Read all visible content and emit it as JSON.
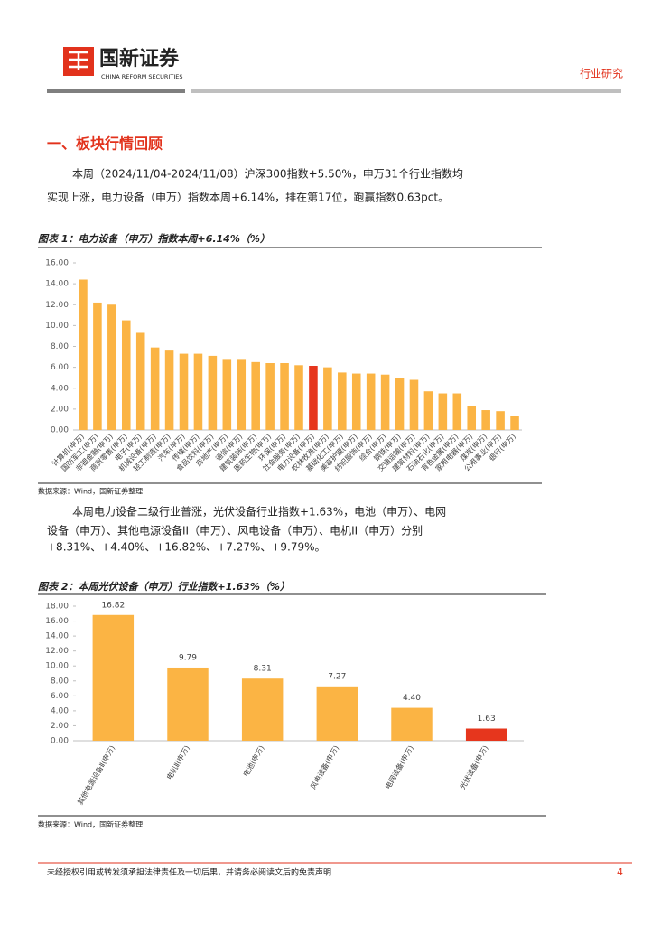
{
  "header": {
    "brand": "国新证券",
    "brand_en": "CHINA REFORM SECURITIES",
    "tag": "行业研究"
  },
  "section_title": "一、板块行情回顾",
  "paragraph1": [
    "本周（2024/11/04-2024/11/08）沪深300指数+5.50%，申万31个行业指数均",
    "实现上涨，电力设备（申万）指数本周+6.14%，排在第17位，跑赢指数0.63pct。"
  ],
  "paragraph2": [
    "本周电力设备二级行业普涨，光伏设备行业指数+1.63%，电池（申万）、电网",
    "设备（申万）、其他电源设备II（申万）、风电设备（申万）、电机II（申万）分别",
    "+8.31%、+4.40%、+16.82%、+7.27%、+9.79%。"
  ],
  "chart_data": [
    {
      "type": "bar",
      "title": "图表 1：电力设备（申万）指数本周+6.14%（%）",
      "source": "数据来源：Wind，国新证券整理",
      "categories": [
        "计算机(申万)",
        "国防军工(申万)",
        "非银金融(申万)",
        "商贸零售(申万)",
        "电子(申万)",
        "机械设备(申万)",
        "轻工制造(申万)",
        "汽车(申万)",
        "传媒(申万)",
        "食品饮料(申万)",
        "房地产(申万)",
        "通信(申万)",
        "建筑装饰(申万)",
        "医药生物(申万)",
        "环保(申万)",
        "社会服务(申万)",
        "电力设备(申万)",
        "农林牧渔(申万)",
        "基础化工(申万)",
        "美容护理(申万)",
        "纺织服饰(申万)",
        "综合(申万)",
        "钢铁(申万)",
        "交通运输(申万)",
        "建筑材料(申万)",
        "石油石化(申万)",
        "有色金属(申万)",
        "家用电器(申万)",
        "煤炭(申万)",
        "公用事业(申万)",
        "银行(申万)"
      ],
      "values": [
        14.4,
        12.2,
        12.0,
        10.5,
        9.3,
        7.9,
        7.6,
        7.3,
        7.3,
        7.1,
        6.8,
        6.8,
        6.5,
        6.4,
        6.4,
        6.2,
        6.14,
        6.0,
        5.5,
        5.4,
        5.4,
        5.3,
        5.0,
        4.8,
        3.7,
        3.5,
        3.5,
        2.3,
        1.9,
        1.8,
        1.3
      ],
      "colors": [
        "#fbb444",
        "#fbb444",
        "#fbb444",
        "#fbb444",
        "#fbb444",
        "#fbb444",
        "#fbb444",
        "#fbb444",
        "#fbb444",
        "#fbb444",
        "#fbb444",
        "#fbb444",
        "#fbb444",
        "#fbb444",
        "#fbb444",
        "#fbb444",
        "#e6361d",
        "#fbb444",
        "#fbb444",
        "#fbb444",
        "#fbb444",
        "#fbb444",
        "#fbb444",
        "#fbb444",
        "#fbb444",
        "#fbb444",
        "#fbb444",
        "#fbb444",
        "#fbb444",
        "#fbb444",
        "#fbb444"
      ],
      "ylim": [
        0,
        16
      ],
      "yticks": [
        {
          "value": 0,
          "label": "0.00"
        },
        {
          "value": 2,
          "label": "2.00"
        },
        {
          "value": 4,
          "label": "4.00"
        },
        {
          "value": 6,
          "label": "6.00"
        },
        {
          "value": 8,
          "label": "8.00"
        },
        {
          "value": 10,
          "label": "10.00"
        },
        {
          "value": 12,
          "label": "12.00"
        },
        {
          "value": 14,
          "label": "14.00"
        },
        {
          "value": 16,
          "label": "16.00"
        }
      ]
    },
    {
      "type": "bar",
      "title": "图表 2：本周光伏设备（申万）行业指数+1.63%（%）",
      "source": "数据来源：Wind，国新证券整理",
      "categories": [
        "其他电源设备Ⅱ(申万)",
        "电机Ⅱ(申万)",
        "电池(申万)",
        "风电设备(申万)",
        "电网设备(申万)",
        "光伏设备(申万)"
      ],
      "values": [
        16.82,
        9.79,
        8.31,
        7.27,
        4.4,
        1.63
      ],
      "value_labels": [
        "16.82",
        "9.79",
        "8.31",
        "7.27",
        "4.40",
        "1.63"
      ],
      "colors": [
        "#fbb444",
        "#fbb444",
        "#fbb444",
        "#fbb444",
        "#fbb444",
        "#e6361d"
      ],
      "ylim": [
        0,
        18
      ],
      "yticks": [
        {
          "value": 0,
          "label": "0.00"
        },
        {
          "value": 2,
          "label": "2.00"
        },
        {
          "value": 4,
          "label": "4.00"
        },
        {
          "value": 6,
          "label": "6.00"
        },
        {
          "value": 8,
          "label": "8.00"
        },
        {
          "value": 10,
          "label": "10.00"
        },
        {
          "value": 12,
          "label": "12.00"
        },
        {
          "value": 14,
          "label": "14.00"
        },
        {
          "value": 16,
          "label": "16.00"
        },
        {
          "value": 18,
          "label": "18.00"
        }
      ]
    }
  ],
  "footer": {
    "disclaimer": "未经授权引用或转发须承担法律责任及一切后果，并请务必阅读文后的免责声明",
    "page": "4"
  }
}
